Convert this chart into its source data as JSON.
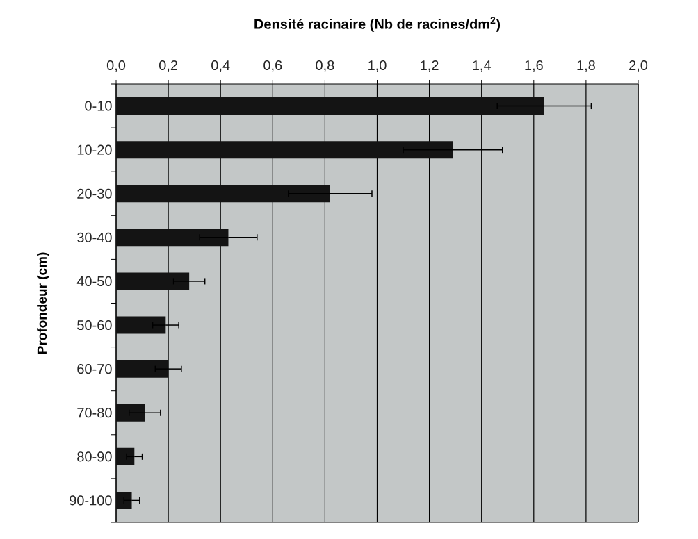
{
  "chart_data": {
    "type": "bar",
    "orientation": "horizontal",
    "xlabel": "Densité racinaire (Nb de racines/dm$^{2}$)",
    "ylabel": "Profondeur (cm)",
    "categories": [
      "0-10",
      "10-20",
      "20-30",
      "30-40",
      "40-50",
      "50-60",
      "60-70",
      "70-80",
      "80-90",
      "90-100"
    ],
    "values": [
      1.64,
      1.29,
      0.82,
      0.43,
      0.28,
      0.19,
      0.2,
      0.11,
      0.07,
      0.06
    ],
    "errors": [
      0.18,
      0.19,
      0.16,
      0.11,
      0.06,
      0.05,
      0.05,
      0.06,
      0.03,
      0.03
    ],
    "color": "#141414",
    "xlim": [
      0,
      2
    ],
    "xticks": [
      {
        "value": 0,
        "label": "0,0"
      },
      {
        "value": 0.2,
        "label": "0,2"
      },
      {
        "value": 0.4,
        "label": "0,4"
      },
      {
        "value": 0.6,
        "label": "0,6"
      },
      {
        "value": 0.8,
        "label": "0,8"
      },
      {
        "value": 1.0,
        "label": "1,0"
      },
      {
        "value": 1.2,
        "label": "1,2"
      },
      {
        "value": 1.4,
        "label": "1,4"
      },
      {
        "value": 1.6,
        "label": "1,6"
      },
      {
        "value": 1.8,
        "label": "1,8"
      },
      {
        "value": 2.0,
        "label": "2,0"
      }
    ],
    "grid": "x"
  }
}
